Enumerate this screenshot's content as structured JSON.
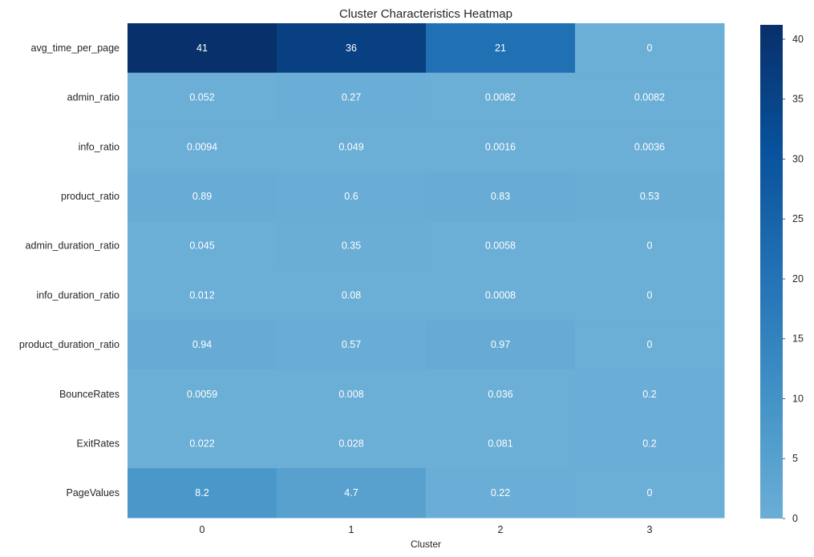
{
  "chart_data": {
    "type": "heatmap",
    "title": "Cluster Characteristics Heatmap",
    "xlabel": "Cluster",
    "ylabel": "",
    "x_categories": [
      "0",
      "1",
      "2",
      "3"
    ],
    "y_categories": [
      "avg_time_per_page",
      "admin_ratio",
      "info_ratio",
      "product_ratio",
      "admin_duration_ratio",
      "info_duration_ratio",
      "product_duration_ratio",
      "BounceRates",
      "ExitRates",
      "PageValues"
    ],
    "values": [
      [
        41,
        36,
        21,
        0
      ],
      [
        0.052,
        0.27,
        0.0082,
        0.0082
      ],
      [
        0.0094,
        0.049,
        0.0016,
        0.0036
      ],
      [
        0.89,
        0.6,
        0.83,
        0.53
      ],
      [
        0.045,
        0.35,
        0.0058,
        0
      ],
      [
        0.012,
        0.08,
        0.0008,
        0
      ],
      [
        0.94,
        0.57,
        0.97,
        0
      ],
      [
        0.0059,
        0.008,
        0.036,
        0.2
      ],
      [
        0.022,
        0.028,
        0.081,
        0.2
      ],
      [
        8.2,
        4.7,
        0.22,
        0
      ]
    ],
    "annotations": [
      [
        "41",
        "36",
        "21",
        "0"
      ],
      [
        "0.052",
        "0.27",
        "0.0082",
        "0.0082"
      ],
      [
        "0.0094",
        "0.049",
        "0.0016",
        "0.0036"
      ],
      [
        "0.89",
        "0.6",
        "0.83",
        "0.53"
      ],
      [
        "0.045",
        "0.35",
        "0.0058",
        "0"
      ],
      [
        "0.012",
        "0.08",
        "0.0008",
        "0"
      ],
      [
        "0.94",
        "0.57",
        "0.97",
        "0"
      ],
      [
        "0.0059",
        "0.008",
        "0.036",
        "0.2"
      ],
      [
        "0.022",
        "0.028",
        "0.081",
        "0.2"
      ],
      [
        "8.2",
        "4.7",
        "0.22",
        "0"
      ]
    ],
    "colormap": "Blues",
    "color_min_hex": "#6aaed6",
    "color_max_hex": "#08306b",
    "colorbar": {
      "vmin": 0,
      "vmax": 41.2,
      "ticks": [
        0,
        5,
        10,
        15,
        20,
        25,
        30,
        35,
        40
      ],
      "tick_labels": [
        "0",
        "5",
        "10",
        "15",
        "20",
        "25",
        "30",
        "35",
        "40"
      ]
    },
    "grid": false
  }
}
